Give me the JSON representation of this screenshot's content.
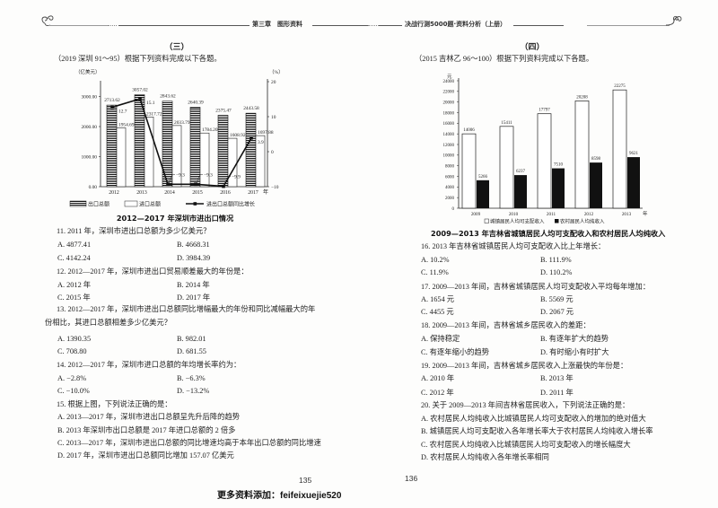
{
  "header": {
    "left_chapter": "第三章　图形资料",
    "right_book": "决战行测5000题·资料分析（上册）"
  },
  "left_page": {
    "section": "（三）",
    "intro": "（2019 深圳 91～95）根据下列资料完成以下各题。",
    "chart_caption": "2012—2017 年深圳市进出口情况",
    "questions": [
      {
        "stem": "11. 2011 年，深圳市进出口总额为多少亿美元？",
        "options": [
          "A. 4877.41",
          "B. 4668.31",
          "C. 4142.24",
          "D. 3984.39"
        ]
      },
      {
        "stem": "12. 2012—2017 年，深圳市进出口贸易顺差最大的年份是：",
        "options": [
          "A. 2012 年",
          "B. 2014 年",
          "C. 2015 年",
          "D. 2017 年"
        ]
      },
      {
        "stem": "13. 2012—2017 年，深圳市进出口总额同比增幅最大的年份和同比减幅最大的年",
        "stem_cont": "份相比，其进口总额相差多少亿美元？",
        "options": [
          "A. 1390.35",
          "B. 982.01",
          "C. 708.80",
          "D. 681.55"
        ]
      },
      {
        "stem": "14. 2012—2017 年，深圳市进口总额的年均增长率约为：",
        "options": [
          "A. −2.8%",
          "B. −6.3%",
          "C. −10.0%",
          "D. −13.2%"
        ]
      },
      {
        "stem": "15. 根据上图，下列说法正确的是：",
        "options": [
          "A. 2013—2017 年，深圳市进出口总额呈先升后降的趋势",
          "B. 2013 年深圳市出口总额是 2017 年进口总额的 2 倍多",
          "C. 2013—2017 年，深圳市进出口总额的同比增速均高于本年出口总额的同比增速",
          "D. 2017 年，深圳市进出口总额同比增加 157.07 亿美元"
        ]
      }
    ],
    "page_number": "135"
  },
  "right_page": {
    "section": "（四）",
    "intro": "（2015 吉林乙 96～100）根据下列资料完成以下各题。",
    "chart_caption": "2009—2013 年吉林省城镇居民人均可支配收入和农村居民人均纯收入",
    "questions": [
      {
        "stem": "16. 2013 年吉林省城镇居民人均可支配收入比上年增长：",
        "options": [
          "A. 10.2%",
          "B. 111.9%",
          "C. 11.9%",
          "D. 110.2%"
        ]
      },
      {
        "stem": "17. 2009—2013 年间，吉林省城镇居民人均可支配收入平均每年增加：",
        "options": [
          "A. 1654 元",
          "B. 5569 元",
          "C. 4455 元",
          "D. 2067 元"
        ]
      },
      {
        "stem": "18. 2009—2013 年间，吉林省城乡居民收入的差距：",
        "options": [
          "A. 保持稳定",
          "B. 有逐年扩大的趋势",
          "C. 有逐年缩小的趋势",
          "D. 有时缩小有时扩大"
        ]
      },
      {
        "stem": "19. 2009—2013 年间，吉林省城乡居民收入上涨最快的年份是：",
        "options": [
          "A. 2010 年",
          "B. 2013 年",
          "C. 2012 年",
          "D. 2011 年"
        ]
      },
      {
        "stem": "20. 关于 2009—2013 年间吉林省居民收入，下列说法正确的是：",
        "options": [
          "A. 农村居民人均纯收入比城镇居民人均可支配收入的增加的绝对值大",
          "B. 城镇居民人均可支配收入各年增长率大于农村居民人均纯收入增长率",
          "C. 农村居民人均纯收入比城镇居民人均可支配收入的增长幅度大",
          "D. 农村居民人均纯收入各年增长率相同"
        ]
      }
    ],
    "page_number": "136"
  },
  "footer": {
    "label": "更多资料添加：",
    "contact": "feifeixuejie520"
  },
  "chart_data": [
    {
      "type": "bar+line",
      "title": "2012—2017 年深圳市进出口情况",
      "categories": [
        "2012",
        "2013",
        "2014",
        "2015",
        "2016",
        "2017"
      ],
      "xlabel": "年",
      "ylabel": "（亿美元）",
      "ylabel_right": "（%）",
      "ylim": [
        0,
        3500
      ],
      "yticks": [
        0,
        1000,
        2000,
        3000
      ],
      "ylim_right": [
        -10,
        20
      ],
      "yticks_right": [
        -10,
        0,
        10,
        20
      ],
      "grid": false,
      "legend_position": "bottom",
      "series": [
        {
          "name": "出口总额",
          "type": "bar",
          "style": "striped",
          "values": [
            2713.62,
            3057.02,
            2843.62,
            2640.39,
            2375.47,
            2443.58
          ]
        },
        {
          "name": "进口总额",
          "type": "bar",
          "style": "hollow",
          "values": [
            1954.69,
            2317.72,
            2033.79,
            1784.2,
            1608.92,
            1697.88
          ]
        },
        {
          "name": "进出口总额同比增长",
          "type": "line",
          "axis": "right",
          "values": [
            12.7,
            15.1,
            -9.3,
            -9.3,
            -9.9,
            3.9
          ]
        }
      ]
    },
    {
      "type": "bar",
      "title": "2009—2013 年吉林省城镇居民人均可支配收入和农村居民人均纯收入",
      "categories": [
        "2009",
        "2010",
        "2011",
        "2012",
        "2013"
      ],
      "xlabel": "年",
      "ylabel": "元",
      "ylim": [
        0,
        24000
      ],
      "yticks": [
        0,
        2000,
        4000,
        6000,
        8000,
        10000,
        12000,
        14000,
        16000,
        18000,
        20000,
        22000,
        24000
      ],
      "grid": false,
      "legend_position": "bottom",
      "series": [
        {
          "name": "城镇居民人均可支配收入",
          "style": "hollow",
          "values": [
            14006,
            15411,
            17797,
            20208,
            22275
          ]
        },
        {
          "name": "农村居民人均纯收入",
          "style": "solid",
          "values": [
            5266,
            6237,
            7510,
            8598,
            9621
          ]
        }
      ]
    }
  ]
}
